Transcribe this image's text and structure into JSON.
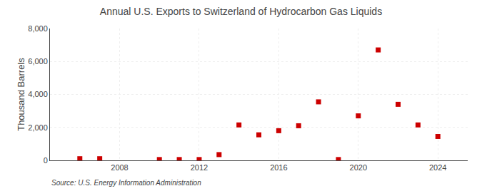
{
  "chart_data": {
    "type": "scatter",
    "title": "Annual U.S. Exports to Switzerland of Hydrocarbon Gas Liquids",
    "y_label": "Thousand Barrels",
    "annotations": [
      "Source: U.S. Energy Information Administration"
    ],
    "x": [
      2006,
      2007,
      2010,
      2011,
      2012,
      2013,
      2014,
      2015,
      2016,
      2017,
      2018,
      2019,
      2020,
      2021,
      2022,
      2023,
      2024
    ],
    "values": [
      100,
      100,
      50,
      50,
      50,
      350,
      2150,
      1550,
      1800,
      2100,
      3550,
      50,
      2700,
      6700,
      3400,
      2150,
      1450
    ],
    "color": "#cc0000",
    "marker": "square",
    "xlim": [
      2004.5,
      2025.5
    ],
    "xticks": [
      2008,
      2012,
      2016,
      2020,
      2024
    ],
    "ylim": [
      0,
      8000
    ],
    "yticks": [
      0,
      {
        "value": 2000,
        "label": "2,000"
      },
      {
        "value": 4000,
        "label": "4,000"
      },
      {
        "value": 6000,
        "label": "6,000"
      },
      {
        "value": 8000,
        "label": "8,000"
      }
    ],
    "grid": true
  }
}
